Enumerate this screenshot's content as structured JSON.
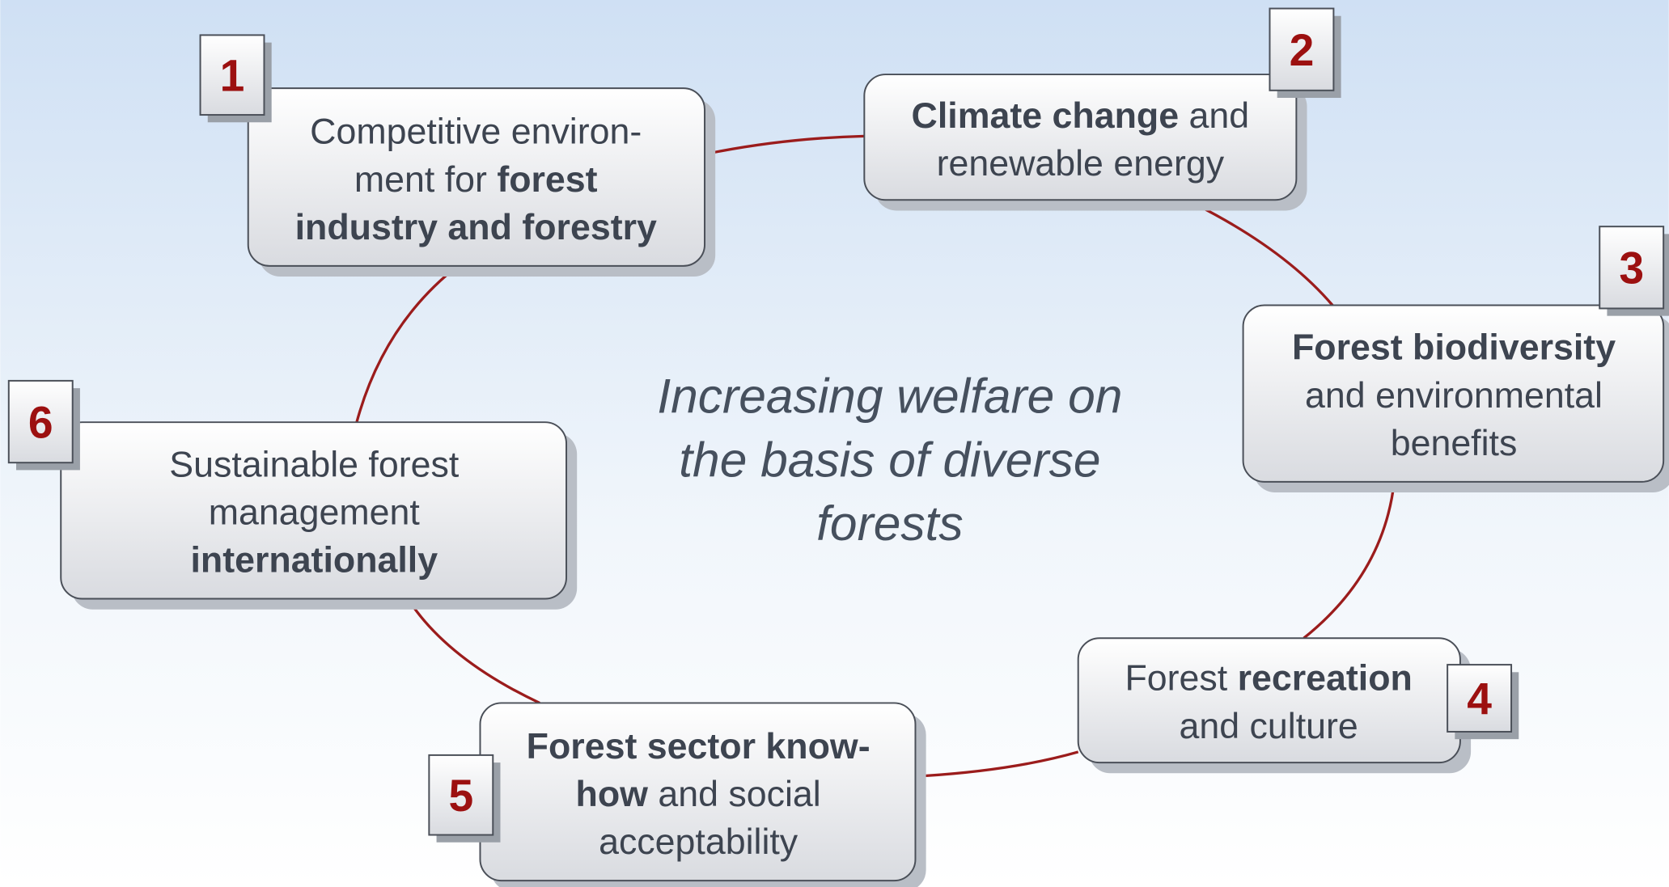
{
  "center_text": [
    "Increasing welfare on",
    "the basis of diverse",
    "forests"
  ],
  "nodes": [
    {
      "number": "1",
      "lines": [
        [
          {
            "t": "Competitive environ-",
            "b": false
          }
        ],
        [
          {
            "t": "ment for ",
            "b": false
          },
          {
            "t": "forest",
            "b": true
          }
        ],
        [
          {
            "t": "industry and forestry",
            "b": true
          }
        ]
      ]
    },
    {
      "number": "2",
      "lines": [
        [
          {
            "t": "Climate change",
            "b": true
          },
          {
            "t": " and",
            "b": false
          }
        ],
        [
          {
            "t": "renewable energy",
            "b": false
          }
        ]
      ]
    },
    {
      "number": "3",
      "lines": [
        [
          {
            "t": "Forest biodiversity",
            "b": true
          }
        ],
        [
          {
            "t": "and environmental",
            "b": false
          }
        ],
        [
          {
            "t": "benefits",
            "b": false
          }
        ]
      ]
    },
    {
      "number": "4",
      "lines": [
        [
          {
            "t": "Forest ",
            "b": false
          },
          {
            "t": "recreation",
            "b": true
          }
        ],
        [
          {
            "t": "and culture",
            "b": false
          }
        ]
      ]
    },
    {
      "number": "5",
      "lines": [
        [
          {
            "t": "Forest sector know-",
            "b": true
          }
        ],
        [
          {
            "t": "how",
            "b": true
          },
          {
            "t": " and social",
            "b": false
          }
        ],
        [
          {
            "t": "acceptability",
            "b": false
          }
        ]
      ]
    },
    {
      "number": "6",
      "lines": [
        [
          {
            "t": "Sustainable forest",
            "b": false
          }
        ],
        [
          {
            "t": "management",
            "b": false
          }
        ],
        [
          {
            "t": "internationally",
            "b": true
          }
        ]
      ]
    }
  ]
}
